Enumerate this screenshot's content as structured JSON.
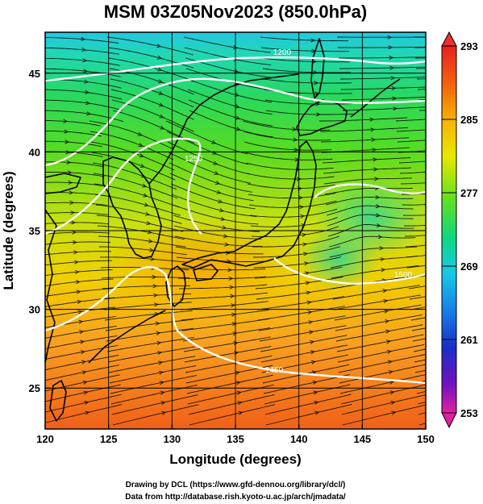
{
  "title": "MSM 03Z05Nov2023 (850.0hPa)",
  "xlabel": "Longitude (degrees)",
  "ylabel": "Latitude  (degrees)",
  "credits": [
    "Drawing by DCL (https://www.gfd-dennou.org/library/dcl/)",
    "Data from http://database.rish.kyoto-u.ac.jp/arch/jmadata/"
  ],
  "map": {
    "lon_range": [
      120,
      150
    ],
    "lat_range": [
      22.4,
      47.6
    ],
    "lon_ticks": [
      "120",
      "125",
      "130",
      "135",
      "140",
      "145",
      "150"
    ],
    "lat_ticks": [
      "25",
      "30",
      "35",
      "40",
      "45"
    ],
    "grid": true,
    "field": "temperature (K)",
    "overlay": "streamlines",
    "contour_labels": [
      "1200",
      "1250",
      "1450",
      "1500"
    ]
  },
  "colorbar": {
    "min": 253,
    "max": 293,
    "labels": [
      "293",
      "285",
      "277",
      "269",
      "261",
      "253"
    ],
    "colors": [
      "#e8209a",
      "#7a10c0",
      "#1840d8",
      "#18b0e8",
      "#10d8a0",
      "#20d820",
      "#a8e010",
      "#f0e000",
      "#f8a000",
      "#f04010",
      "#e02020"
    ]
  }
}
